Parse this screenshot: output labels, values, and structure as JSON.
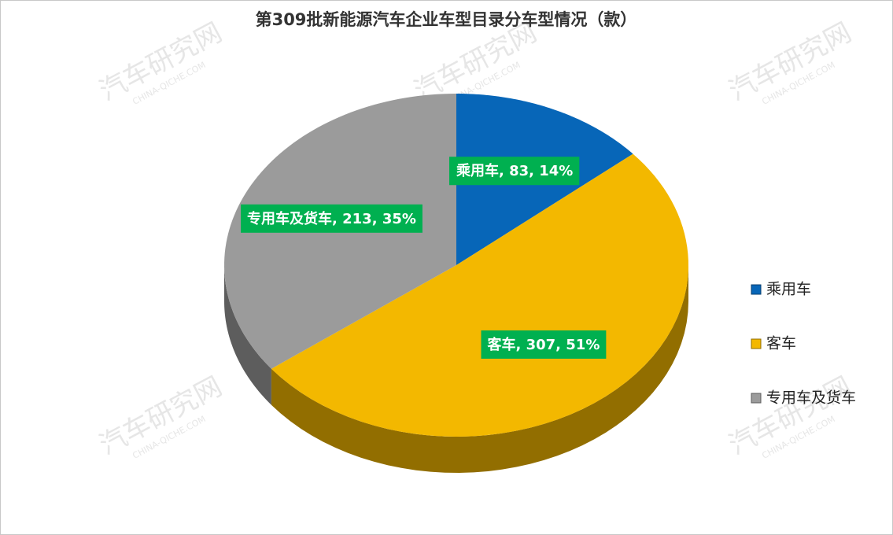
{
  "chart_data": {
    "type": "pie",
    "title": "第309批新能源汽车企业车型目录分车型情况（款）",
    "categories": [
      "乘用车",
      "客车",
      "专用车及货车"
    ],
    "values": [
      83,
      307,
      213
    ],
    "value_labels": [
      "乘用车, 83, 14%",
      "客车, 307, 51%",
      "专用车及货车, 213, 35%"
    ],
    "colors": [
      "#0766b8",
      "#f3b800",
      "#9b9b9b"
    ],
    "label_color": "#00b050",
    "legend": "right",
    "watermark": {
      "text": "汽车研究网",
      "subtext": "CHINA-QICHE.COM"
    }
  }
}
